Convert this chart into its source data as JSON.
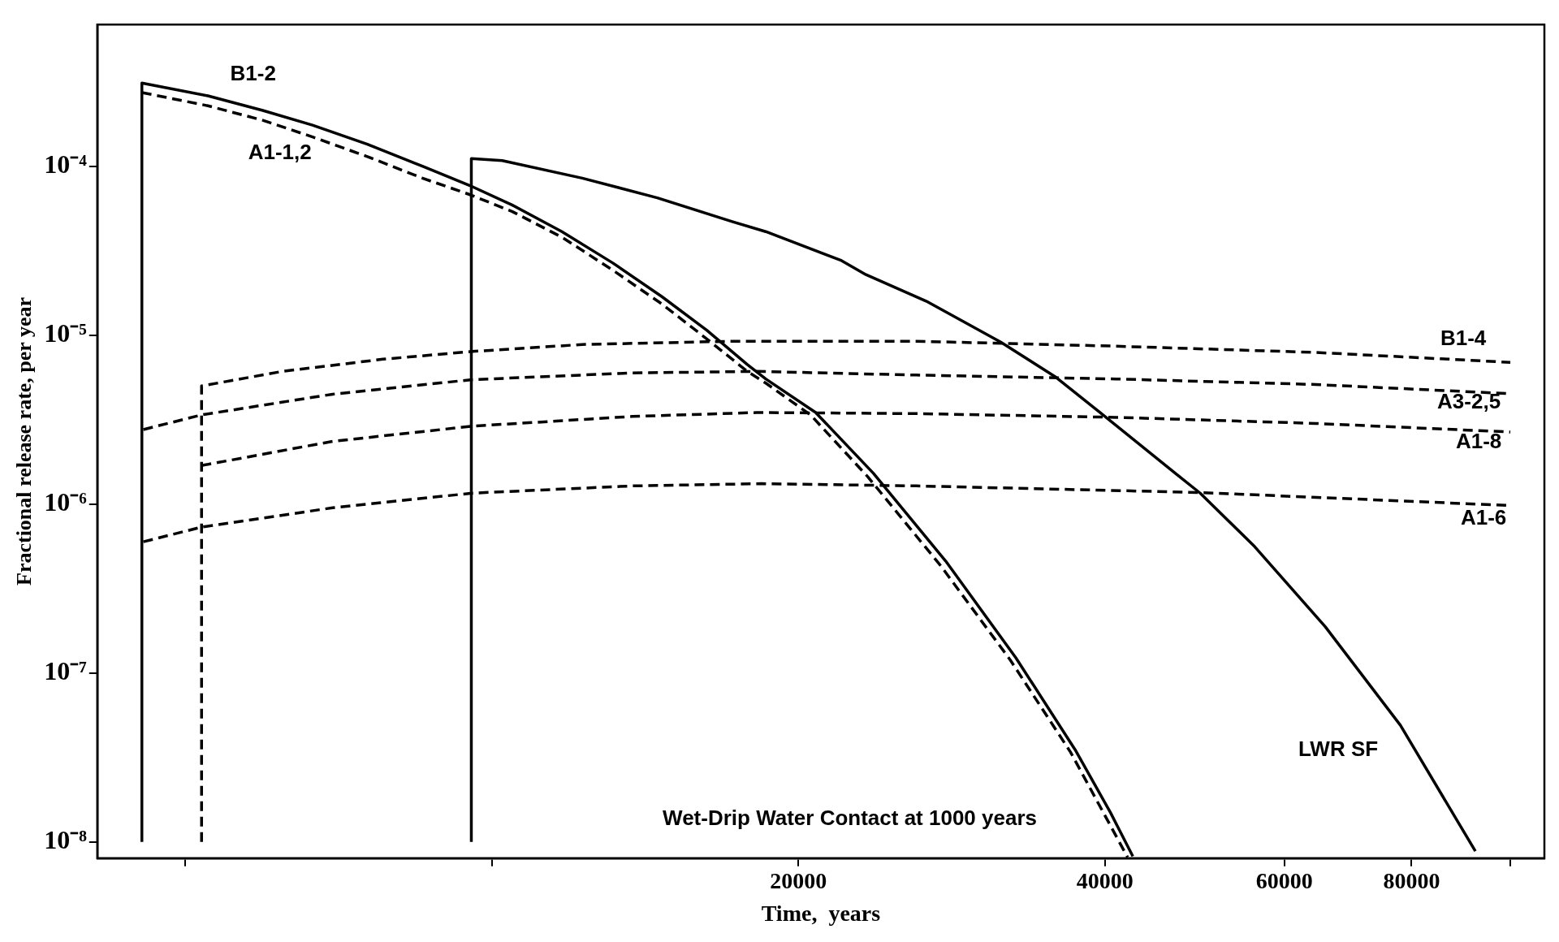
{
  "chart_data": {
    "type": "line",
    "xlabel": "Time,  years",
    "ylabel": "Fractional release rate, per year",
    "log": "xy",
    "marker": "none",
    "grid": false,
    "xlim": [
      4100,
      108000
    ],
    "ylim": [
      8e-09,
      0.00069
    ],
    "xticks": [
      {
        "value": 5000,
        "label": null
      },
      {
        "value": 10000,
        "label": null
      },
      20000,
      40000,
      60000,
      80000,
      {
        "value": 100000,
        "label": null
      }
    ],
    "yticks": [
      {
        "value": 1e-08,
        "label": "10⁻⁸"
      },
      {
        "value": 1e-07,
        "label": "10⁻⁷"
      },
      {
        "value": 1e-06,
        "label": "10⁻⁶"
      },
      {
        "value": 1e-05,
        "label": "10⁻⁵"
      },
      {
        "value": 0.0001,
        "label": "10⁻⁴"
      }
    ],
    "series": [
      {
        "name": "B1-2",
        "color": "#000000",
        "line_style": "solid",
        "x": [
          4535,
          4535,
          5265,
          5960,
          6670,
          7550,
          8550,
          9510,
          10470,
          11720,
          13140,
          14690,
          16260,
          17820,
          18580,
          20800,
          23700,
          27900,
          32700,
          37400,
          40500,
          42600
        ],
        "values": [
          1e-08,
          0.000311,
          0.000261,
          0.000214,
          0.000175,
          0.000135,
          0.0001,
          7.7e-05,
          5.9e-05,
          4.1e-05,
          2.68e-05,
          1.69e-05,
          1.07e-05,
          6.7e-06,
          5.5e-06,
          3.48e-06,
          1.52e-06,
          4.6e-07,
          1.23e-07,
          3.5e-08,
          1.49e-08,
          8.2e-09
        ]
      },
      {
        "name": "A1-1,2",
        "color": "#000000",
        "line_style": "dashed",
        "x": [
          4535,
          5265,
          5960,
          6670,
          7550,
          8550,
          9510,
          10470,
          11720,
          13140,
          14690,
          16260,
          17820,
          18580,
          20560,
          23400,
          27600,
          32300,
          37000,
          40000,
          42100
        ],
        "values": [
          0.000273,
          0.000228,
          0.000187,
          0.000149,
          0.000114,
          8.5e-05,
          6.8e-05,
          5.4e-05,
          3.8e-05,
          2.43e-05,
          1.53e-05,
          9.5e-06,
          6.1e-06,
          5.2e-06,
          3.37e-06,
          1.45e-06,
          4.3e-07,
          1.19e-07,
          3.4e-08,
          1.43e-08,
          8.1e-09
        ]
      },
      {
        "name": "LWR SF",
        "color": "#000000",
        "line_style": "solid",
        "x": [
          9550,
          9550,
          10240,
          12270,
          14540,
          17220,
          18580,
          22000,
          23300,
          26700,
          31600,
          35700,
          40000,
          46900,
          49600,
          56100,
          65800,
          78000,
          92400
        ],
        "values": [
          1e-08,
          0.000111,
          0.000108,
          8.5e-05,
          6.5e-05,
          4.7e-05,
          4.1e-05,
          2.78e-05,
          2.28e-05,
          1.59e-05,
          9.1e-06,
          5.7e-06,
          3.3e-06,
          1.52e-06,
          1.16e-06,
          5.6e-07,
          1.88e-07,
          4.9e-08,
          8.8e-09
        ]
      },
      {
        "name": "B1-4",
        "color": "#000000",
        "line_style": "dashed",
        "x": [
          5190,
          5190,
          6230,
          7820,
          9570,
          12270,
          17220,
          26100,
          41000,
          64400,
          100000
        ],
        "values": [
          1e-08,
          5e-06,
          6.1e-06,
          7.2e-06,
          8e-06,
          8.8e-06,
          9.2e-06,
          9.2e-06,
          8.6e-06,
          7.9e-06,
          6.9e-06
        ]
      },
      {
        "name": "A3-2,5",
        "color": "#000000",
        "line_style": "dashed",
        "x": [
          4550,
          5190,
          6980,
          9570,
          13740,
          18200,
          26100,
          41000,
          64400,
          100000
        ],
        "values": [
          2.76e-06,
          3.37e-06,
          4.47e-06,
          5.45e-06,
          5.97e-06,
          6.1e-06,
          5.8e-06,
          5.5e-06,
          5.1e-06,
          4.5e-06
        ]
      },
      {
        "name": "A1-8",
        "color": "#000000",
        "line_style": "dashed",
        "x": [
          5190,
          6980,
          9570,
          13740,
          18200,
          26100,
          41000,
          64400,
          100000
        ],
        "values": [
          1.69e-06,
          2.35e-06,
          2.89e-06,
          3.3e-06,
          3.48e-06,
          3.43e-06,
          3.26e-06,
          3e-06,
          2.67e-06
        ]
      },
      {
        "name": "A1-6",
        "color": "#000000",
        "line_style": "dashed",
        "x": [
          4550,
          5190,
          6980,
          9570,
          13740,
          18400,
          26100,
          49600,
          100000
        ],
        "values": [
          5.98e-07,
          7.3e-07,
          9.5e-07,
          1.16e-06,
          1.28e-06,
          1.32e-06,
          1.28e-06,
          1.17e-06,
          9.8e-07
        ]
      }
    ],
    "annotations": [
      "Wet-Drip Water Contact at 1000 years"
    ]
  }
}
